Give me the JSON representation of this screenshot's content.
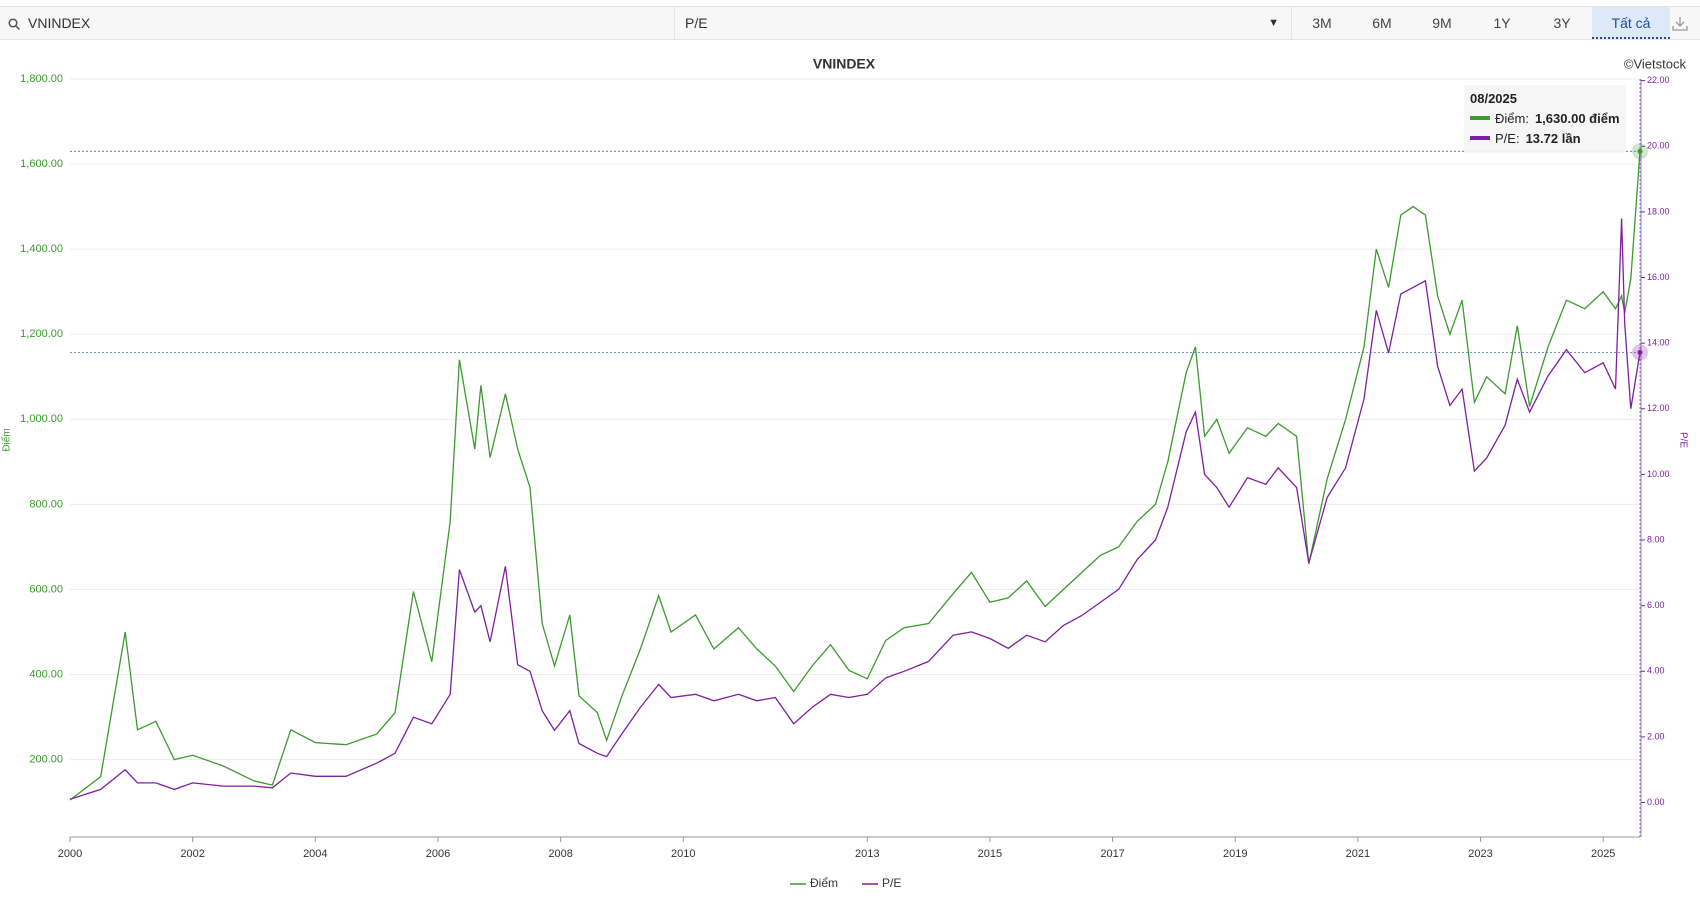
{
  "toolbar": {
    "search": "VNINDEX",
    "metric": "P/E",
    "ranges": [
      "3M",
      "6M",
      "9M",
      "1Y",
      "3Y",
      "Tất cả"
    ],
    "active": "Tất cả"
  },
  "chart_data": {
    "type": "line",
    "title": "VNINDEX",
    "credit": "©Vietstock",
    "y_label": "Điểm",
    "y2_label": "P/E",
    "x": [
      2000.0,
      2000.5,
      2000.9,
      2001.1,
      2001.4,
      2001.7,
      2002.0,
      2002.5,
      2003.0,
      2003.3,
      2003.6,
      2004.0,
      2004.5,
      2005.0,
      2005.3,
      2005.6,
      2005.9,
      2006.2,
      2006.35,
      2006.6,
      2006.7,
      2006.85,
      2007.1,
      2007.3,
      2007.5,
      2007.7,
      2007.9,
      2008.15,
      2008.3,
      2008.6,
      2008.75,
      2009.0,
      2009.3,
      2009.6,
      2009.8,
      2010.2,
      2010.5,
      2010.9,
      2011.2,
      2011.5,
      2011.8,
      2012.1,
      2012.4,
      2012.7,
      2013.0,
      2013.3,
      2013.6,
      2014.0,
      2014.4,
      2014.7,
      2015.0,
      2015.3,
      2015.6,
      2015.9,
      2016.2,
      2016.5,
      2016.8,
      2017.1,
      2017.4,
      2017.7,
      2017.9,
      2018.2,
      2018.35,
      2018.5,
      2018.7,
      2018.9,
      2019.2,
      2019.5,
      2019.7,
      2020.0,
      2020.2,
      2020.5,
      2020.8,
      2021.1,
      2021.3,
      2021.5,
      2021.7,
      2021.9,
      2022.1,
      2022.3,
      2022.5,
      2022.7,
      2022.9,
      2023.1,
      2023.4,
      2023.6,
      2023.8,
      2024.1,
      2024.4,
      2024.7,
      2025.0,
      2025.2,
      2025.3,
      2025.35,
      2025.45,
      2025.6
    ],
    "series": [
      {
        "name": "Điểm",
        "color": "#3c9a2e",
        "values": [
          105,
          160,
          500,
          270,
          290,
          200,
          210,
          185,
          150,
          140,
          270,
          240,
          235,
          260,
          310,
          595,
          430,
          760,
          1140,
          930,
          1080,
          910,
          1060,
          930,
          840,
          520,
          420,
          540,
          350,
          310,
          245,
          350,
          460,
          585,
          500,
          540,
          460,
          510,
          460,
          420,
          360,
          420,
          470,
          410,
          390,
          480,
          510,
          520,
          590,
          640,
          570,
          580,
          620,
          560,
          600,
          640,
          680,
          700,
          760,
          800,
          900,
          1110,
          1170,
          960,
          1000,
          920,
          980,
          960,
          990,
          960,
          660,
          860,
          1000,
          1170,
          1400,
          1310,
          1480,
          1500,
          1480,
          1290,
          1200,
          1280,
          1040,
          1100,
          1060,
          1220,
          1030,
          1170,
          1280,
          1260,
          1300,
          1260,
          1290,
          1250,
          1330,
          1630
        ]
      },
      {
        "name": "P/E",
        "color": "#7e1fa0",
        "axis": "y2",
        "values": [
          0.1,
          0.4,
          1.0,
          0.6,
          0.6,
          0.4,
          0.6,
          0.5,
          0.5,
          0.45,
          0.9,
          0.8,
          0.8,
          1.2,
          1.5,
          2.6,
          2.4,
          3.3,
          7.1,
          5.8,
          6.0,
          4.9,
          7.2,
          4.2,
          4.0,
          2.8,
          2.2,
          2.8,
          1.8,
          1.5,
          1.4,
          2.1,
          2.9,
          3.6,
          3.2,
          3.3,
          3.1,
          3.3,
          3.1,
          3.2,
          2.4,
          2.9,
          3.3,
          3.2,
          3.3,
          3.8,
          4.0,
          4.3,
          5.1,
          5.2,
          5.0,
          4.7,
          5.1,
          4.9,
          5.4,
          5.7,
          6.1,
          6.5,
          7.4,
          8.0,
          9.0,
          11.3,
          11.9,
          10.0,
          9.6,
          9.0,
          9.9,
          9.7,
          10.2,
          9.6,
          7.3,
          9.3,
          10.2,
          12.3,
          15.0,
          13.7,
          15.5,
          15.7,
          15.9,
          13.3,
          12.1,
          12.6,
          10.1,
          10.5,
          11.5,
          12.9,
          11.9,
          13.0,
          13.8,
          13.1,
          13.4,
          12.6,
          17.8,
          14.6,
          12.0,
          13.72
        ]
      }
    ],
    "xlim": [
      2000,
      2025.6
    ],
    "xticks": [
      2000,
      2002,
      2004,
      2006,
      2008,
      2010,
      2013,
      2015,
      2017,
      2019,
      2021,
      2023,
      2025
    ],
    "ylim": [
      18,
      1800
    ],
    "yticks": [
      {
        "value": 200,
        "label": "200.00"
      },
      {
        "value": 400,
        "label": "400.00"
      },
      {
        "value": 600,
        "label": "600.00"
      },
      {
        "value": 800,
        "label": "800.00"
      },
      {
        "value": 1000,
        "label": "1,000.00"
      },
      {
        "value": 1200,
        "label": "1,200.00"
      },
      {
        "value": 1400,
        "label": "1,400.00"
      },
      {
        "value": 1600,
        "label": "1,600.00"
      },
      {
        "value": 1800,
        "label": "1,800.00"
      }
    ],
    "y2lim": [
      -1.05,
      22.05
    ],
    "y2ticks": [
      {
        "value": 0,
        "label": "0.00"
      },
      {
        "value": 2,
        "label": "2.00"
      },
      {
        "value": 4,
        "label": "4.00"
      },
      {
        "value": 6,
        "label": "6.00"
      },
      {
        "value": 8,
        "label": "8.00"
      },
      {
        "value": 10,
        "label": "10.00"
      },
      {
        "value": 12,
        "label": "12.00"
      },
      {
        "value": 14,
        "label": "14.00"
      },
      {
        "value": 16,
        "label": "16.00"
      },
      {
        "value": 18,
        "label": "18.00"
      },
      {
        "value": 20,
        "label": "20.00"
      },
      {
        "value": 22,
        "label": "22.00"
      }
    ],
    "grid": true,
    "legend": "bottom",
    "tooltip": {
      "title": "08/2025",
      "rows": [
        {
          "label": "Điểm:",
          "value": "1,630.00 điểm"
        },
        {
          "label": "P/E:",
          "value": "13.72 lần"
        }
      ]
    }
  }
}
